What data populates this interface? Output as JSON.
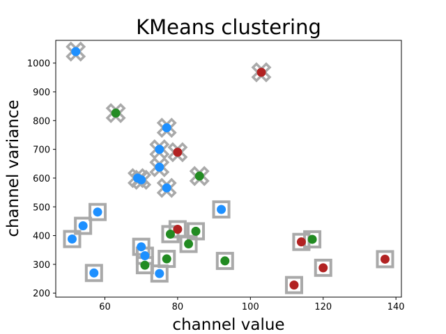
{
  "chart_data": {
    "type": "scatter",
    "title": "KMeans clustering",
    "xlabel": "channel value",
    "ylabel": "channel variance",
    "xlim": [
      46.5,
      141.5
    ],
    "ylim": [
      186,
      1079
    ],
    "xticks": [
      60,
      80,
      100,
      120,
      140
    ],
    "yticks": [
      200,
      300,
      400,
      500,
      600,
      700,
      800,
      900,
      1000
    ],
    "grid": false,
    "legend": "none",
    "colors": {
      "blue": "#1e90ff",
      "green": "#228b22",
      "red": "#b22222",
      "marker_outline": "#a9a9a9"
    },
    "points": [
      {
        "x": 52,
        "y": 1040,
        "color": "blue",
        "marker": "x"
      },
      {
        "x": 103,
        "y": 968,
        "color": "red",
        "marker": "x"
      },
      {
        "x": 63,
        "y": 826,
        "color": "green",
        "marker": "x"
      },
      {
        "x": 77,
        "y": 775,
        "color": "blue",
        "marker": "x"
      },
      {
        "x": 75,
        "y": 700,
        "color": "blue",
        "marker": "x"
      },
      {
        "x": 80,
        "y": 690,
        "color": "red",
        "marker": "x"
      },
      {
        "x": 75,
        "y": 638,
        "color": "blue",
        "marker": "x"
      },
      {
        "x": 86,
        "y": 607,
        "color": "green",
        "marker": "x"
      },
      {
        "x": 69,
        "y": 600,
        "color": "blue",
        "marker": "x"
      },
      {
        "x": 70,
        "y": 594,
        "color": "blue",
        "marker": "x"
      },
      {
        "x": 77,
        "y": 566,
        "color": "blue",
        "marker": "x"
      },
      {
        "x": 92,
        "y": 491,
        "color": "blue",
        "marker": "square"
      },
      {
        "x": 58,
        "y": 482,
        "color": "blue",
        "marker": "square"
      },
      {
        "x": 54,
        "y": 434,
        "color": "blue",
        "marker": "square"
      },
      {
        "x": 80,
        "y": 422,
        "color": "red",
        "marker": "square"
      },
      {
        "x": 85,
        "y": 415,
        "color": "green",
        "marker": "square"
      },
      {
        "x": 78,
        "y": 405,
        "color": "green",
        "marker": "square"
      },
      {
        "x": 51,
        "y": 388,
        "color": "blue",
        "marker": "square"
      },
      {
        "x": 117,
        "y": 387,
        "color": "green",
        "marker": "square"
      },
      {
        "x": 114,
        "y": 378,
        "color": "red",
        "marker": "square"
      },
      {
        "x": 83,
        "y": 371,
        "color": "green",
        "marker": "square"
      },
      {
        "x": 70,
        "y": 361,
        "color": "blue",
        "marker": "square"
      },
      {
        "x": 71,
        "y": 330,
        "color": "blue",
        "marker": "square"
      },
      {
        "x": 77,
        "y": 319,
        "color": "green",
        "marker": "square"
      },
      {
        "x": 137,
        "y": 318,
        "color": "red",
        "marker": "square"
      },
      {
        "x": 93,
        "y": 312,
        "color": "green",
        "marker": "square"
      },
      {
        "x": 71,
        "y": 297,
        "color": "green",
        "marker": "square"
      },
      {
        "x": 120,
        "y": 288,
        "color": "red",
        "marker": "square"
      },
      {
        "x": 57,
        "y": 270,
        "color": "blue",
        "marker": "square"
      },
      {
        "x": 75,
        "y": 268,
        "color": "blue",
        "marker": "square"
      },
      {
        "x": 112,
        "y": 228,
        "color": "red",
        "marker": "square"
      }
    ]
  }
}
